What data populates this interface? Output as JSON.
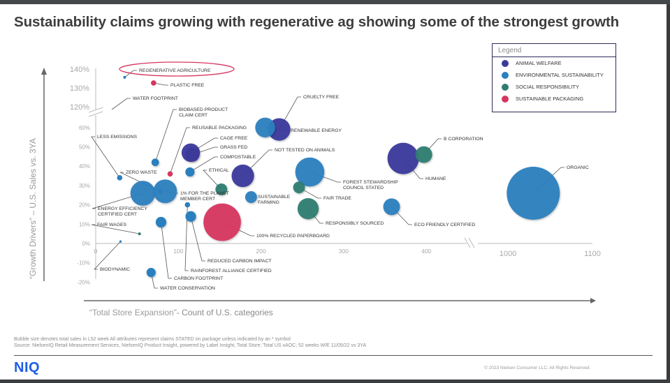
{
  "title": "Sustainability claims growing with regenerative ag showing some of the strongest growth",
  "legend": {
    "title": "Legend",
    "items": [
      {
        "label": "ANIMAL WELFARE",
        "color": "#3b3a9c"
      },
      {
        "label": "ENVIRONMENTAL SUSTAINABILITY",
        "color": "#2a7fbf"
      },
      {
        "label": "SOCIAL RESPONSIBILITY",
        "color": "#2f7d72"
      },
      {
        "label": "SUSTAINABLE PACKAGING",
        "color": "#d6365f"
      }
    ]
  },
  "axes": {
    "xlabel_quote": "“Total Store Expansion”",
    "xlabel_rest": "- Count of U.S. categories",
    "ylabel": "“Growth Drivers” – U.S. Sales vs. 3YA"
  },
  "footnotes": {
    "line1": "Bubble size denotes total sales in L52 week All attributes represent claims STATED on package unless indicated by an * symbol",
    "line2": "Source: NielsenIQ Retail Measurement Services, NielsenIQ Product Insight, powered by Label Insight, Total Store; Total US xAOC; 52 weeks W/E 11/05/22 vs 3YA"
  },
  "logo": "NIQ",
  "copyright": "© 2023 Nielsen Consumer LLC. All Rights Reserved.",
  "chart_data": {
    "type": "scatter",
    "subtype": "bubble",
    "title": "Sustainability claims growing with regenerative ag showing some of the strongest growth",
    "xlabel": "“Total Store Expansion”- Count of U.S. categories",
    "ylabel": "“Growth Drivers” – U.S. Sales vs. 3YA",
    "x_ticks": [
      "0",
      "100",
      "200",
      "300",
      "400",
      "1000",
      "1100"
    ],
    "y_ticks": [
      "-20%",
      "-10%",
      "0%",
      "10%",
      "20%",
      "30%",
      "40%",
      "50%",
      "60%",
      "120%",
      "130%",
      "140%"
    ],
    "x_axis_break": [
      470,
      960
    ],
    "y_axis_break": [
      65,
      115
    ],
    "xlim": [
      0,
      1100
    ],
    "ylim": [
      -20,
      145
    ],
    "legend_position": "top-right",
    "highlight": "REGENERATIVE AGRICULTURE",
    "size_note": "Bubble size denotes total sales in L52 week",
    "series": [
      {
        "name": "ANIMAL WELFARE",
        "color": "#3b3a9c",
        "points": [
          {
            "label": "CRUELTY FREE",
            "x": 222,
            "y": 59,
            "size": 0.18
          },
          {
            "label": "CAGE FREE",
            "x": 115,
            "y": 47,
            "size": 0.12
          },
          {
            "label": "GRASS FED",
            "x": 117,
            "y": 46,
            "size": 0.07
          },
          {
            "label": "NOT TESTED ON ANIMALS",
            "x": 178,
            "y": 35,
            "size": 0.18
          },
          {
            "label": "HUMANE",
            "x": 372,
            "y": 44,
            "size": 0.35
          }
        ]
      },
      {
        "name": "ENVIRONMENTAL SUSTAINABILITY",
        "color": "#2a7fbf",
        "points": [
          {
            "label": "REGENERATIVE AGRICULTURE",
            "x": 35,
            "y": 136,
            "size": 0.003
          },
          {
            "label": "WATER FOOTPRINT",
            "x": 0,
            "y": 0,
            "size": 0
          },
          {
            "label": "BIOBASED PRODUCT CLAIM CERT",
            "x": 72,
            "y": 42,
            "size": 0.02
          },
          {
            "label": "LESS EMISSIONS",
            "x": 29,
            "y": 34,
            "size": 0.01
          },
          {
            "label": "RENEWABLE ENERGY",
            "x": 205,
            "y": 60,
            "size": 0.14
          },
          {
            "label": "COMPOSTABLE",
            "x": 114,
            "y": 37,
            "size": 0.03
          },
          {
            "label": "ZERO WASTE",
            "x": 78,
            "y": 27,
            "size": 0.01
          },
          {
            "label": "ENERGY EFFICIENCY CERTIFIED CERT",
            "x": 57,
            "y": 26,
            "size": 0.22
          },
          {
            "label": "1% FOR THE PLANET MEMBER CERT",
            "x": 84,
            "y": 27,
            "size": 0.2
          },
          {
            "label": "SUSTAINABLE FARMING",
            "x": 188,
            "y": 24,
            "size": 0.05
          },
          {
            "label": "FOREST STEWARDSHIP COUNCIL STATED",
            "x": 259,
            "y": 37,
            "size": 0.3
          },
          {
            "label": "ECO FRIENDLY CERTIFIED",
            "x": 358,
            "y": 19,
            "size": 0.1
          },
          {
            "label": "ORGANIC",
            "x": 1030,
            "y": 26,
            "size": 1.0
          },
          {
            "label": "REDUCED CARBON IMPACT",
            "x": 115,
            "y": 14,
            "size": 0.04
          },
          {
            "label": "CARBON FOOTPRINT",
            "x": 79,
            "y": 11,
            "size": 0.04
          },
          {
            "label": "RAINFOREST ALLIANCE CERTIFIED",
            "x": 111,
            "y": 20,
            "size": 0.01
          },
          {
            "label": "WATER CONSERVATION",
            "x": 67,
            "y": -15,
            "size": 0.03
          },
          {
            "label": "BIODYNAMIC",
            "x": 30,
            "y": 1,
            "size": 0.002
          }
        ]
      },
      {
        "name": "SOCIAL RESPONSIBILITY",
        "color": "#2f7d72",
        "points": [
          {
            "label": "B CORPORATION",
            "x": 397,
            "y": 46,
            "size": 0.1
          },
          {
            "label": "ETHICAL",
            "x": 152,
            "y": 28,
            "size": 0.05
          },
          {
            "label": "FAIR TRADE",
            "x": 246,
            "y": 29,
            "size": 0.05
          },
          {
            "label": "RESPONSIBLY SOURCED",
            "x": 257,
            "y": 18,
            "size": 0.16
          },
          {
            "label": "FAIR WAGES",
            "x": 53,
            "y": 5,
            "size": 0.003
          }
        ]
      },
      {
        "name": "SUSTAINABLE PACKAGING",
        "color": "#d6365f",
        "points": [
          {
            "label": "PLASTIC FREE",
            "x": 70,
            "y": 133,
            "size": 0.01
          },
          {
            "label": "REUSABLE PACKAGING",
            "x": 90,
            "y": 36,
            "size": 0.01
          },
          {
            "label": "100% RECYCLED PAPERBOARD",
            "x": 153,
            "y": 11,
            "size": 0.5
          }
        ]
      }
    ]
  }
}
